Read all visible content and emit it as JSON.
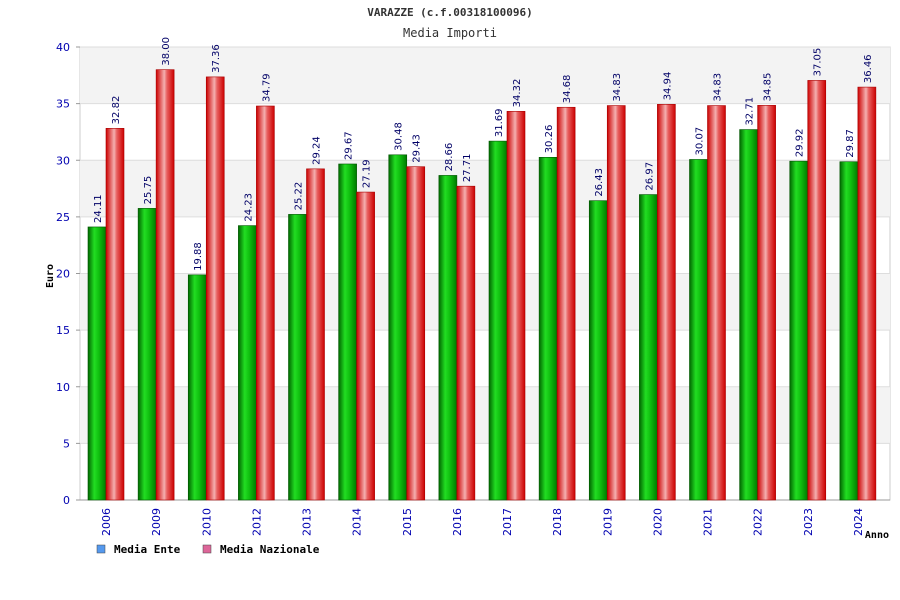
{
  "chart_data": {
    "type": "bar",
    "title": "VARAZZE (c.f.00318100096)",
    "subtitle": "Media Importi",
    "xlabel": "Anno",
    "ylabel": "Euro",
    "ylim": [
      0,
      40
    ],
    "yticks": [
      "0",
      "5",
      "10",
      "15",
      "20",
      "25",
      "30",
      "35",
      "40"
    ],
    "grid": true,
    "legend_position": "bottom-left",
    "categories": [
      "2006",
      "2009",
      "2010",
      "2012",
      "2013",
      "2014",
      "2015",
      "2016",
      "2017",
      "2018",
      "2019",
      "2020",
      "2021",
      "2022",
      "2023",
      "2024"
    ],
    "series": [
      {
        "name": "Media Ente",
        "color": "#00b000",
        "legend_color": "#5599ee",
        "values": [
          24.11,
          25.75,
          19.88,
          24.23,
          25.22,
          29.67,
          30.48,
          28.66,
          31.69,
          30.26,
          26.43,
          26.97,
          30.07,
          32.71,
          29.92,
          29.87
        ],
        "labels": [
          "24.11",
          "25.75",
          "19.88",
          "24.23",
          "25.22",
          "29.67",
          "30.48",
          "28.66",
          "31.69",
          "30.26",
          "26.43",
          "26.97",
          "30.07",
          "32.71",
          "29.92",
          "29.87"
        ]
      },
      {
        "name": "Media Nazionale",
        "color": "#e01010",
        "legend_color": "#dd6699",
        "values": [
          32.82,
          38.0,
          37.36,
          34.79,
          29.24,
          27.19,
          29.43,
          27.71,
          34.32,
          34.68,
          34.83,
          34.94,
          34.83,
          34.85,
          37.05,
          36.46
        ],
        "labels": [
          "32.82",
          "38.00",
          "37.36",
          "34.79",
          "29.24",
          "27.19",
          "29.43",
          "27.71",
          "34.32",
          "34.68",
          "34.83",
          "34.94",
          "34.83",
          "34.85",
          "37.05",
          "36.46"
        ]
      }
    ]
  }
}
